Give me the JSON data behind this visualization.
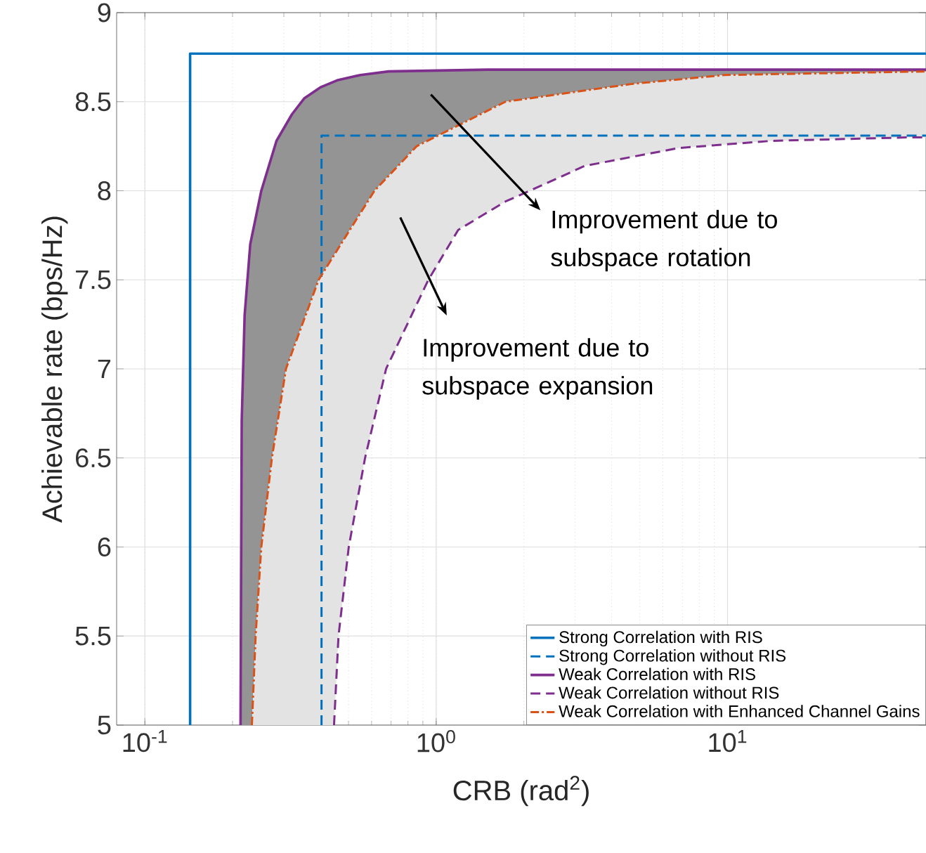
{
  "chart_data": {
    "type": "line",
    "xlabel": "CRB (rad$^{2}$)",
    "ylabel": "Achievable rate (bps/Hz)",
    "log": "x",
    "grid": true,
    "legend": "bottom right",
    "marker": "none",
    "xlim": [
      0.08,
      48
    ],
    "ylim": [
      5,
      9
    ],
    "xticks": [
      {
        "value": 0.1,
        "label": "10$^{-1}$"
      },
      {
        "value": 1,
        "label": "10$^{0}$"
      },
      {
        "value": 10,
        "label": "10$^{1}$"
      }
    ],
    "yticks": [
      5,
      5.5,
      6,
      6.5,
      7,
      7.5,
      8,
      8.5,
      9
    ],
    "series": [
      {
        "name": "Strong Correlation with RIS",
        "color": "#0072bd",
        "line_style": "solid",
        "x": [
          0.143,
          0.143,
          48
        ],
        "values": [
          5,
          8.77,
          8.77
        ]
      },
      {
        "name": "Strong Correlation without RIS",
        "color": "#0072bd",
        "line_style": "dashed",
        "x": [
          0.404,
          0.404,
          48
        ],
        "values": [
          5,
          8.31,
          8.31
        ]
      },
      {
        "name": "Weak Correlation with RIS",
        "color": "#7e2f8e",
        "line_style": "solid",
        "x": [
          0.213,
          0.215,
          0.22,
          0.23,
          0.251,
          0.283,
          0.32,
          0.353,
          0.4,
          0.457,
          0.55,
          0.687,
          1.5,
          48
        ],
        "values": [
          5,
          6.71,
          7.3,
          7.7,
          8.0,
          8.28,
          8.43,
          8.52,
          8.58,
          8.62,
          8.65,
          8.67,
          8.68,
          8.68
        ]
      },
      {
        "name": "Weak Correlation without RIS",
        "color": "#7e2f8e",
        "line_style": "dashed",
        "x": [
          0.446,
          0.462,
          0.501,
          0.57,
          0.673,
          0.94,
          1.19,
          1.73,
          2.23,
          3.24,
          6.8,
          14.1,
          42.8,
          48
        ],
        "values": [
          5,
          5.5,
          6,
          6.5,
          7,
          7.5,
          7.78,
          7.94,
          8.02,
          8.14,
          8.24,
          8.28,
          8.3,
          8.3
        ]
      },
      {
        "name": "Weak Correlation with Enhanced Channel Gains",
        "color": "#d95319",
        "line_style": "dashdot",
        "x": [
          0.233,
          0.24,
          0.251,
          0.273,
          0.305,
          0.395,
          0.492,
          0.614,
          0.857,
          1.73,
          4.7,
          9.8,
          48
        ],
        "values": [
          5,
          5.5,
          6,
          6.5,
          7,
          7.5,
          7.75,
          8,
          8.25,
          8.5,
          8.6,
          8.65,
          8.67
        ]
      }
    ],
    "annotations": [
      "Improvement due to subspace rotation",
      "Improvement due to subspace expansion"
    ]
  }
}
